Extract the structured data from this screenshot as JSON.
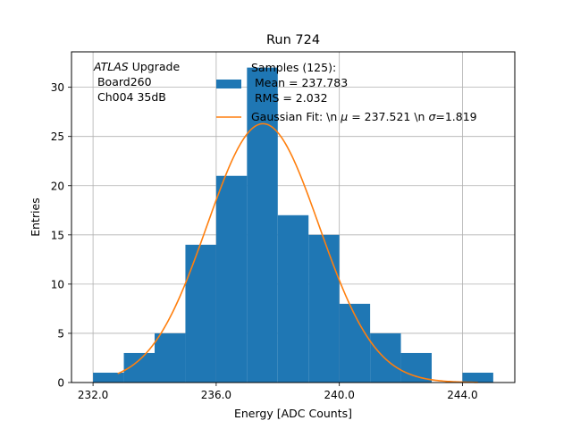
{
  "chart_data": {
    "type": "bar",
    "title": "Run 724",
    "xlabel": "Energy [ADC Counts]",
    "ylabel": "Entries",
    "xlim": [
      231.3,
      245.7
    ],
    "ylim": [
      0,
      33.6
    ],
    "x_ticks": [
      232.0,
      236.0,
      240.0,
      244.0
    ],
    "x_tick_labels": [
      "232.0",
      "236.0",
      "240.0",
      "244.0"
    ],
    "y_ticks": [
      0,
      5,
      10,
      15,
      20,
      25,
      30
    ],
    "y_tick_labels": [
      "0",
      "5",
      "10",
      "15",
      "20",
      "25",
      "30"
    ],
    "grid": true,
    "legend_position": "top-right",
    "annotation": {
      "italic": "ATLAS",
      "line1_rest": " Upgrade",
      "line2": " Board260",
      "line3": " Ch004 35dB"
    },
    "histogram": {
      "name_lines": [
        "Samples (125):",
        " Mean = 237.783",
        " RMS = 2.032"
      ],
      "color": "#1f77b4",
      "bins": [
        {
          "x0": 232.0,
          "x1": 233.0,
          "count": 1
        },
        {
          "x0": 233.0,
          "x1": 234.0,
          "count": 3
        },
        {
          "x0": 234.0,
          "x1": 235.0,
          "count": 5
        },
        {
          "x0": 235.0,
          "x1": 236.0,
          "count": 14
        },
        {
          "x0": 236.0,
          "x1": 237.0,
          "count": 21
        },
        {
          "x0": 237.0,
          "x1": 238.0,
          "count": 32
        },
        {
          "x0": 238.0,
          "x1": 239.0,
          "count": 17
        },
        {
          "x0": 239.0,
          "x1": 240.0,
          "count": 15
        },
        {
          "x0": 240.0,
          "x1": 241.0,
          "count": 8
        },
        {
          "x0": 241.0,
          "x1": 242.0,
          "count": 5
        },
        {
          "x0": 242.0,
          "x1": 243.0,
          "count": 3
        },
        {
          "x0": 243.0,
          "x1": 244.0,
          "count": 0
        },
        {
          "x0": 244.0,
          "x1": 245.0,
          "count": 1
        }
      ]
    },
    "fit": {
      "name_prefix": "Gaussian Fit: \\n ",
      "mu_symbol": "μ",
      "mu_text": " = 237.521 \\n ",
      "sigma_symbol": "σ",
      "sigma_text": "=1.819",
      "color": "#ff7f0e",
      "mu": 237.521,
      "sigma": 1.819,
      "amplitude": 26.3,
      "x_range": [
        232.8,
        244.5
      ]
    }
  }
}
